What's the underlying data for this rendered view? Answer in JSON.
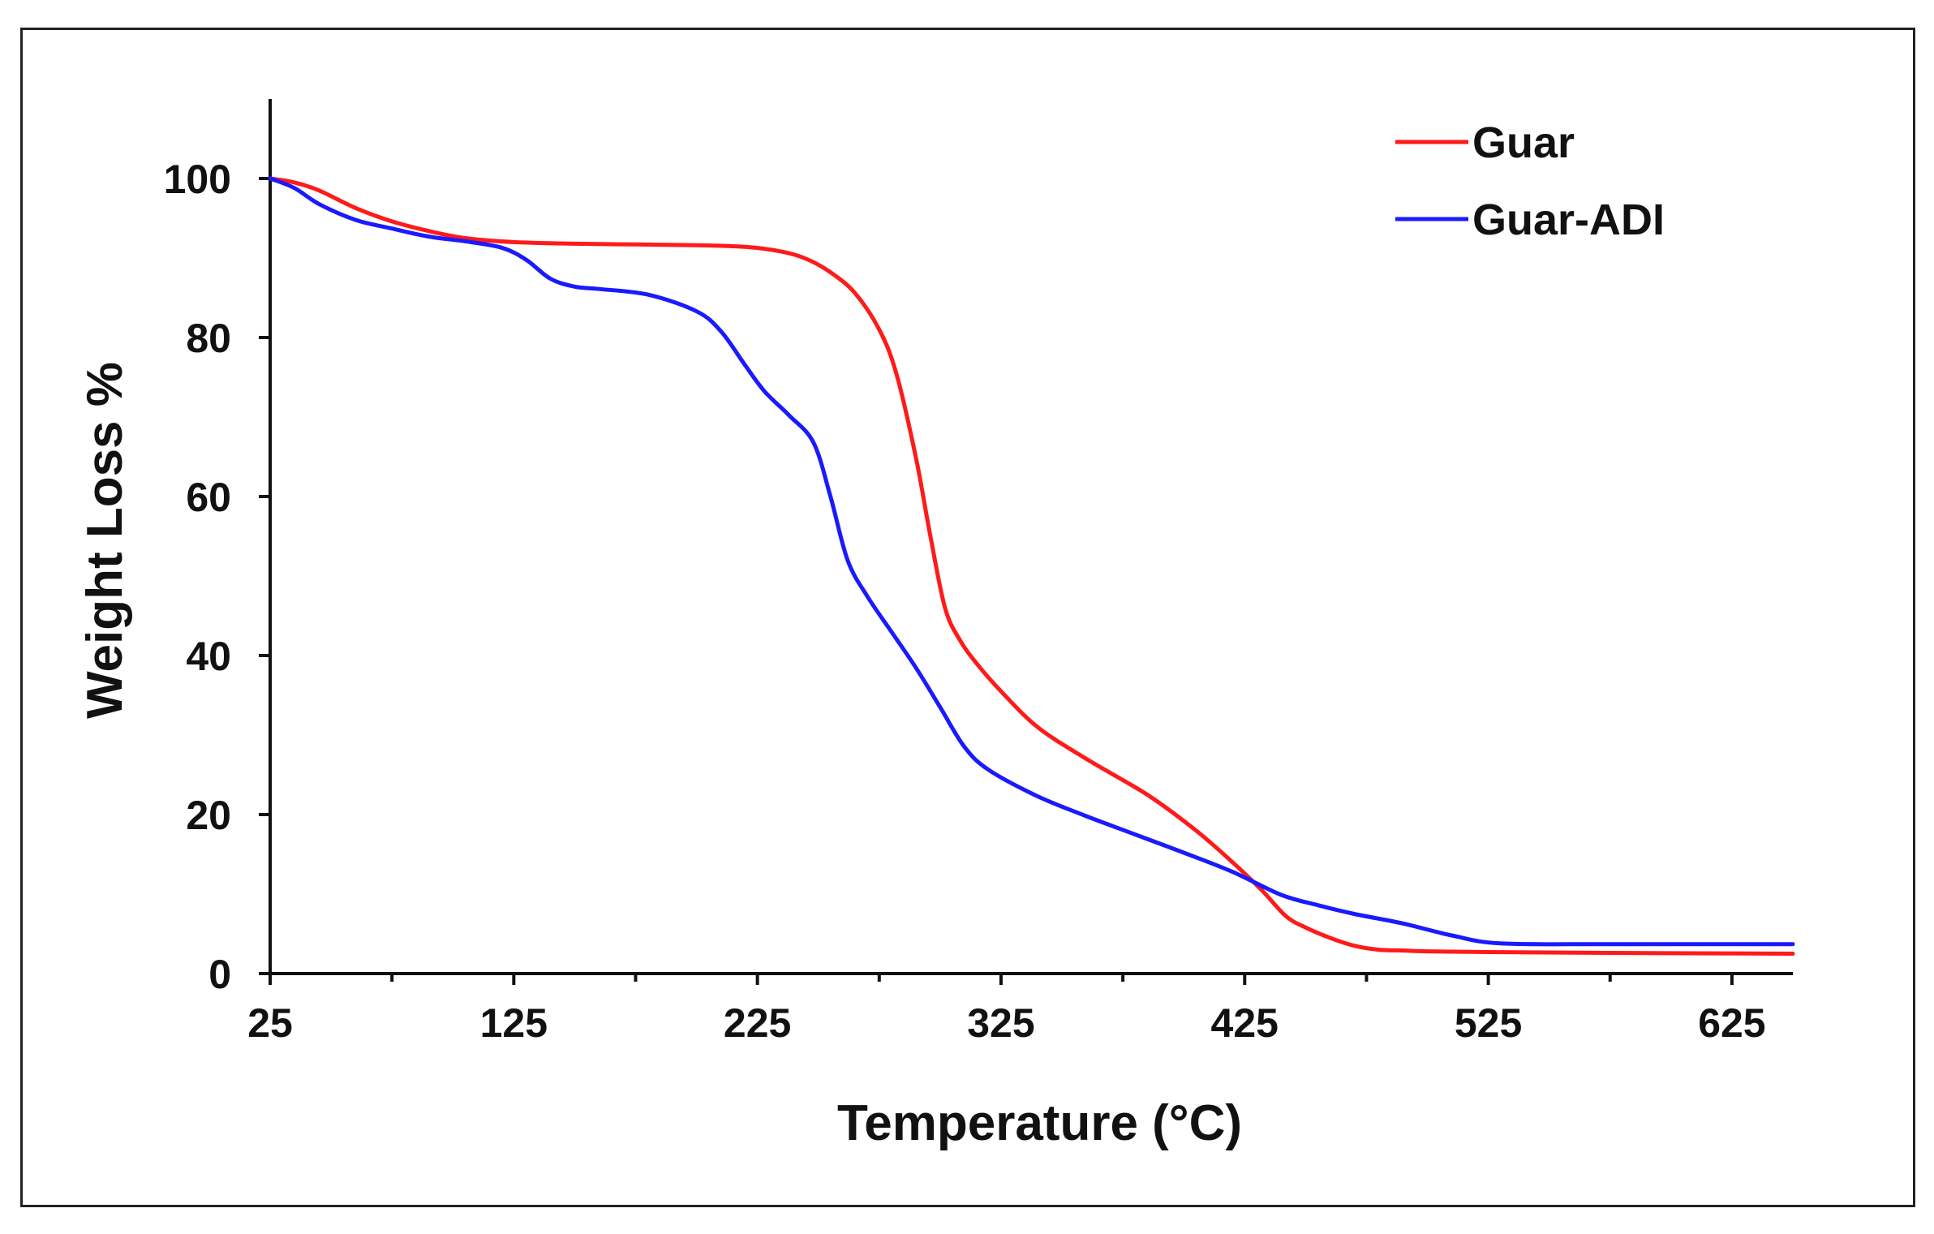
{
  "chart_data": {
    "type": "line",
    "title": "",
    "xlabel": "Temperature (°C)",
    "ylabel": "Weight Loss %",
    "xlim": [
      25,
      650
    ],
    "ylim": [
      0,
      110
    ],
    "xticks": [
      25,
      125,
      225,
      325,
      425,
      525,
      625
    ],
    "xminorticks": [
      75,
      175,
      275,
      375,
      475,
      575
    ],
    "yticks": [
      0,
      20,
      40,
      60,
      80,
      100
    ],
    "grid": false,
    "legend_position": "top-right",
    "series": [
      {
        "name": "Guar",
        "color": "#ff1a1a",
        "x": [
          25,
          35,
          45,
          60,
          75,
          90,
          105,
          125,
          150,
          175,
          200,
          220,
          235,
          245,
          255,
          265,
          275,
          282,
          290,
          296,
          302,
          308,
          315,
          325,
          340,
          360,
          385,
          405,
          420,
          432,
          442,
          450,
          460,
          470,
          480,
          490,
          500,
          525,
          575,
          650
        ],
        "y": [
          100,
          99.5,
          98.5,
          96.3,
          94.6,
          93.4,
          92.5,
          92.0,
          91.8,
          91.7,
          91.6,
          91.4,
          90.8,
          89.9,
          88.2,
          85.6,
          81.0,
          75.5,
          65.0,
          55.0,
          46.0,
          42.0,
          39.0,
          35.5,
          31.0,
          27.0,
          22.5,
          18.0,
          14.0,
          10.5,
          7.2,
          5.8,
          4.5,
          3.5,
          3.0,
          2.9,
          2.8,
          2.7,
          2.6,
          2.5
        ]
      },
      {
        "name": "Guar-ADI",
        "color": "#1a1aff",
        "x": [
          25,
          35,
          45,
          60,
          75,
          90,
          105,
          120,
          130,
          140,
          150,
          160,
          180,
          200,
          210,
          220,
          228,
          238,
          248,
          255,
          262,
          270,
          280,
          290,
          300,
          310,
          320,
          340,
          360,
          380,
          400,
          420,
          440,
          455,
          470,
          490,
          510,
          530,
          575,
          650
        ],
        "y": [
          100,
          98.8,
          96.8,
          94.8,
          93.7,
          92.7,
          92.1,
          91.3,
          89.8,
          87.4,
          86.4,
          86.1,
          85.4,
          83.3,
          80.8,
          76.5,
          73.2,
          70.2,
          66.8,
          60.0,
          52.0,
          47.5,
          43.0,
          38.5,
          33.5,
          28.5,
          25.6,
          22.3,
          19.8,
          17.5,
          15.2,
          12.8,
          9.9,
          8.6,
          7.5,
          6.3,
          4.8,
          3.8,
          3.7,
          3.7
        ]
      }
    ]
  }
}
